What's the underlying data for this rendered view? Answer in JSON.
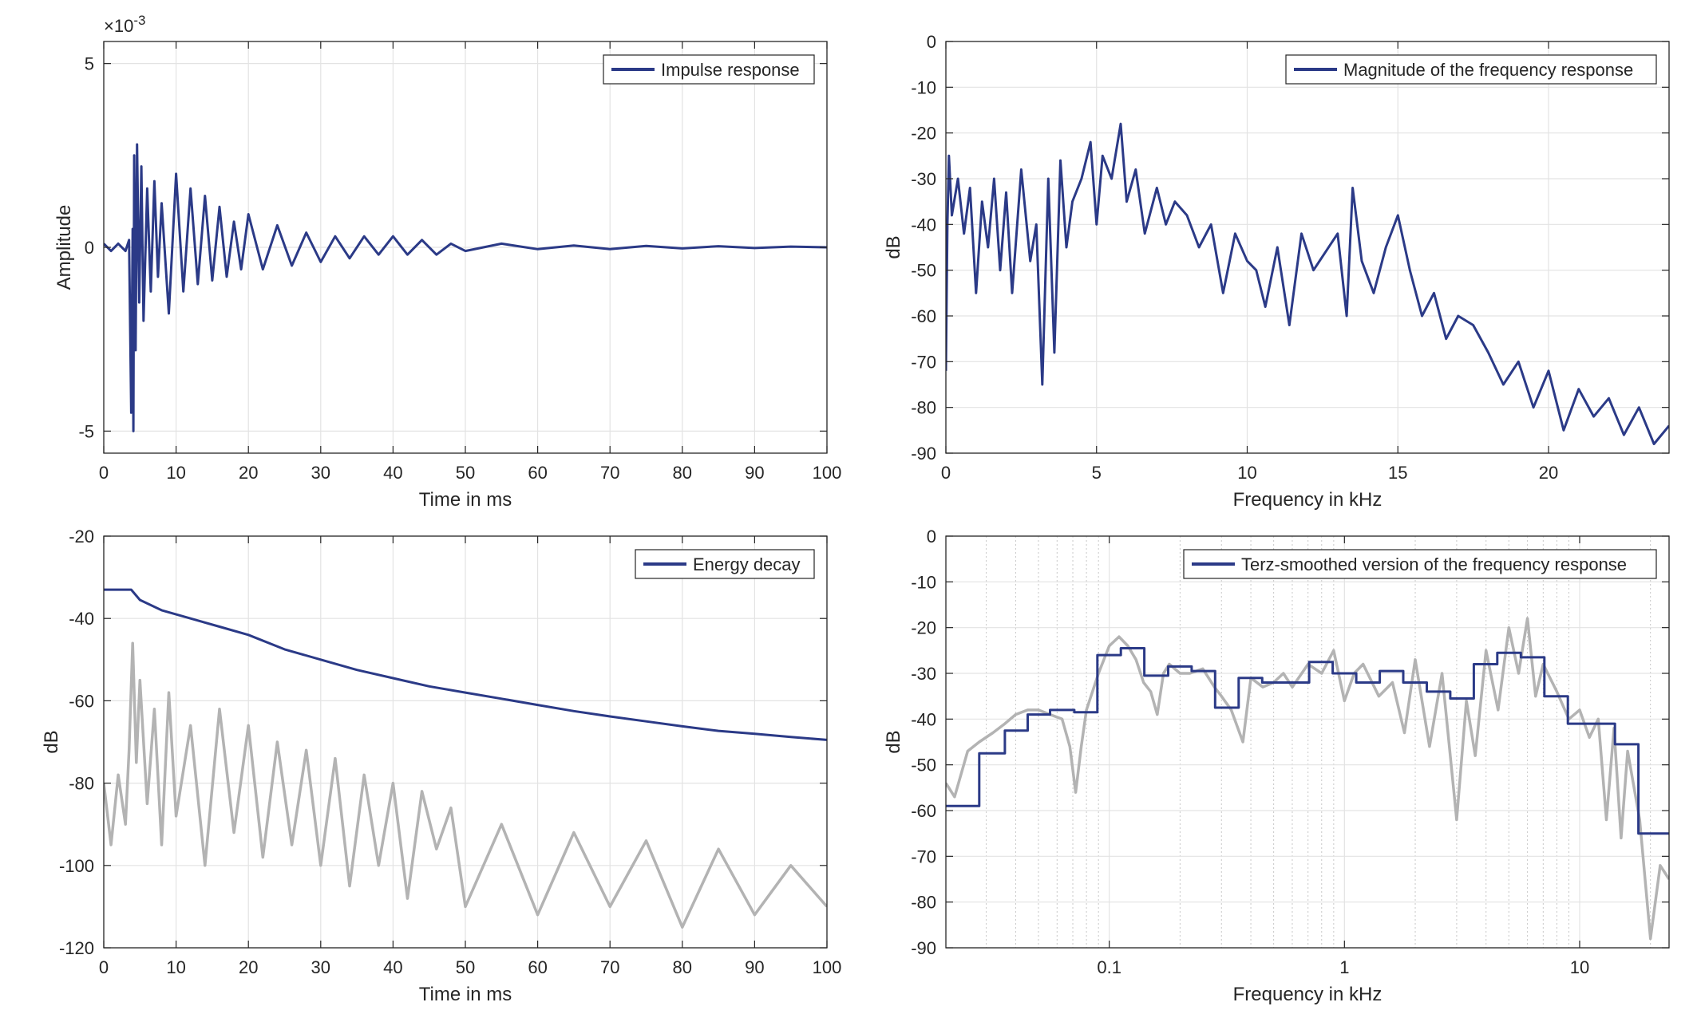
{
  "chart_data": [
    {
      "id": "impulse",
      "type": "line",
      "xlabel": "Time in ms",
      "ylabel": "Amplitude",
      "xlim": [
        0,
        100
      ],
      "ylim": [
        -0.0056,
        0.0056
      ],
      "xticks": [
        0,
        10,
        20,
        30,
        40,
        50,
        60,
        70,
        80,
        90,
        100
      ],
      "xtick_labels": [
        "0",
        "10",
        "20",
        "30",
        "40",
        "50",
        "60",
        "70",
        "80",
        "90",
        "100"
      ],
      "yticks": [
        -0.005,
        0,
        0.005
      ],
      "ytick_labels": [
        "-5",
        "0",
        "5"
      ],
      "exponent_label": "×10",
      "exponent_power": "-3",
      "grid": true,
      "legend_position": "top-right",
      "series": [
        {
          "name": "Impulse response",
          "color": "#2b3a87",
          "x": [
            0,
            1,
            2,
            3,
            3.5,
            3.8,
            4.0,
            4.1,
            4.2,
            4.4,
            4.6,
            4.9,
            5.2,
            5.5,
            6,
            6.5,
            7,
            7.5,
            8,
            9,
            10,
            11,
            12,
            13,
            14,
            15,
            16,
            17,
            18,
            19,
            20,
            22,
            24,
            26,
            28,
            30,
            32,
            34,
            36,
            38,
            40,
            42,
            44,
            46,
            48,
            50,
            55,
            60,
            65,
            70,
            75,
            80,
            85,
            90,
            95,
            100
          ],
          "y": [
            0.0001,
            -0.0001,
            0.0001,
            -0.0001,
            0.0002,
            -0.0045,
            0.0005,
            -0.005,
            0.0025,
            -0.0028,
            0.0028,
            -0.0015,
            0.0022,
            -0.002,
            0.0016,
            -0.0012,
            0.0018,
            -0.0008,
            0.0012,
            -0.0018,
            0.002,
            -0.0012,
            0.0016,
            -0.001,
            0.0014,
            -0.0009,
            0.0011,
            -0.0008,
            0.0007,
            -0.0006,
            0.0009,
            -0.0006,
            0.0006,
            -0.0005,
            0.0004,
            -0.0004,
            0.0003,
            -0.0003,
            0.0003,
            -0.0002,
            0.0003,
            -0.0002,
            0.0002,
            -0.0002,
            0.0001,
            -0.0001,
            0.0001,
            -5e-05,
            5e-05,
            -5e-05,
            4e-05,
            -3e-05,
            3e-05,
            -2e-05,
            2e-05,
            0
          ]
        }
      ]
    },
    {
      "id": "freq",
      "type": "line",
      "xlabel": "Frequency in kHz",
      "ylabel": "dB",
      "xlim": [
        0,
        24
      ],
      "ylim": [
        -90,
        0
      ],
      "xticks": [
        0,
        5,
        10,
        15,
        20
      ],
      "xtick_labels": [
        "0",
        "5",
        "10",
        "15",
        "20"
      ],
      "yticks": [
        0,
        -10,
        -20,
        -30,
        -40,
        -50,
        -60,
        -70,
        -80,
        -90
      ],
      "ytick_labels": [
        "0",
        "-10",
        "-20",
        "-30",
        "-40",
        "-50",
        "-60",
        "-70",
        "-80",
        "-90"
      ],
      "grid": true,
      "legend_position": "top-right",
      "series": [
        {
          "name": "Magnitude of the frequency response",
          "color": "#2b3a87",
          "x": [
            0,
            0.05,
            0.1,
            0.2,
            0.4,
            0.6,
            0.8,
            1.0,
            1.2,
            1.4,
            1.6,
            1.8,
            2.0,
            2.2,
            2.5,
            2.8,
            3.0,
            3.2,
            3.4,
            3.6,
            3.8,
            4.0,
            4.2,
            4.5,
            4.8,
            5.0,
            5.2,
            5.5,
            5.8,
            6.0,
            6.3,
            6.6,
            7.0,
            7.3,
            7.6,
            8.0,
            8.4,
            8.8,
            9.2,
            9.6,
            10.0,
            10.3,
            10.6,
            11.0,
            11.4,
            11.8,
            12.2,
            12.6,
            13.0,
            13.3,
            13.5,
            13.8,
            14.2,
            14.6,
            15.0,
            15.4,
            15.8,
            16.2,
            16.6,
            17.0,
            17.5,
            18.0,
            18.5,
            19.0,
            19.5,
            20.0,
            20.5,
            21.0,
            21.5,
            22.0,
            22.5,
            23.0,
            23.5,
            24.0
          ],
          "y": [
            -72,
            -40,
            -25,
            -38,
            -30,
            -42,
            -32,
            -55,
            -35,
            -45,
            -30,
            -50,
            -33,
            -55,
            -28,
            -48,
            -40,
            -75,
            -30,
            -68,
            -26,
            -45,
            -35,
            -30,
            -22,
            -40,
            -25,
            -30,
            -18,
            -35,
            -28,
            -42,
            -32,
            -40,
            -35,
            -38,
            -45,
            -40,
            -55,
            -42,
            -48,
            -50,
            -58,
            -45,
            -62,
            -42,
            -50,
            -46,
            -42,
            -60,
            -32,
            -48,
            -55,
            -45,
            -38,
            -50,
            -60,
            -55,
            -65,
            -60,
            -62,
            -68,
            -75,
            -70,
            -80,
            -72,
            -85,
            -76,
            -82,
            -78,
            -86,
            -80,
            -88,
            -84
          ]
        }
      ]
    },
    {
      "id": "decay",
      "type": "line",
      "xlabel": "Time in ms",
      "ylabel": "dB",
      "xlim": [
        0,
        100
      ],
      "ylim": [
        -120,
        -20
      ],
      "xticks": [
        0,
        10,
        20,
        30,
        40,
        50,
        60,
        70,
        80,
        90,
        100
      ],
      "xtick_labels": [
        "0",
        "10",
        "20",
        "30",
        "40",
        "50",
        "60",
        "70",
        "80",
        "90",
        "100"
      ],
      "yticks": [
        -20,
        -40,
        -60,
        -80,
        -100,
        -120
      ],
      "ytick_labels": [
        "-20",
        "-40",
        "-60",
        "-80",
        "-100",
        "-120"
      ],
      "grid": true,
      "legend_position": "top-right",
      "series": [
        {
          "color": "#b3b3b3",
          "x": [
            0,
            1,
            2,
            3,
            3.5,
            4,
            4.5,
            5,
            6,
            7,
            8,
            9,
            10,
            12,
            14,
            16,
            18,
            20,
            22,
            24,
            26,
            28,
            30,
            32,
            34,
            36,
            38,
            40,
            42,
            44,
            46,
            48,
            50,
            55,
            60,
            65,
            70,
            75,
            80,
            85,
            90,
            95,
            100
          ],
          "y": [
            -80,
            -95,
            -78,
            -90,
            -72,
            -46,
            -75,
            -55,
            -85,
            -62,
            -95,
            -58,
            -88,
            -66,
            -100,
            -62,
            -92,
            -66,
            -98,
            -70,
            -95,
            -72,
            -100,
            -74,
            -105,
            -78,
            -100,
            -80,
            -108,
            -82,
            -96,
            -86,
            -110,
            -90,
            -112,
            -92,
            -110,
            -94,
            -115,
            -96,
            -112,
            -100,
            -110
          ]
        },
        {
          "name": "Energy decay",
          "color": "#2b3a87",
          "x": [
            0,
            2,
            3.8,
            5,
            8,
            12,
            16,
            20,
            25,
            30,
            35,
            40,
            45,
            50,
            55,
            60,
            65,
            70,
            75,
            80,
            85,
            90,
            95,
            100
          ],
          "y": [
            -33,
            -33,
            -33,
            -35.5,
            -38,
            -40,
            -42,
            -44,
            -47.5,
            -50,
            -52.5,
            -54.5,
            -56.5,
            -58,
            -59.5,
            -61,
            -62.5,
            -63.8,
            -65,
            -66.2,
            -67.3,
            -68,
            -68.8,
            -69.5
          ]
        }
      ]
    },
    {
      "id": "terz",
      "type": "line",
      "log_x": true,
      "xlabel": "Frequency in kHz",
      "ylabel": "dB",
      "xlim": [
        0.0202,
        24
      ],
      "ylim": [
        -90,
        0
      ],
      "xticks": [
        0.1,
        1,
        10
      ],
      "xtick_labels": [
        "0.1",
        "1",
        "10"
      ],
      "yticks": [
        0,
        -10,
        -20,
        -30,
        -40,
        -50,
        -60,
        -70,
        -80,
        -90
      ],
      "ytick_labels": [
        "0",
        "-10",
        "-20",
        "-30",
        "-40",
        "-50",
        "-60",
        "-70",
        "-80",
        "-90"
      ],
      "grid": true,
      "legend_position": "top-right",
      "series": [
        {
          "color": "#b3b3b3",
          "x": [
            0.0202,
            0.022,
            0.025,
            0.028,
            0.032,
            0.036,
            0.04,
            0.045,
            0.05,
            0.056,
            0.063,
            0.068,
            0.072,
            0.076,
            0.08,
            0.09,
            0.1,
            0.11,
            0.12,
            0.13,
            0.14,
            0.15,
            0.16,
            0.17,
            0.18,
            0.2,
            0.22,
            0.25,
            0.28,
            0.3,
            0.33,
            0.37,
            0.4,
            0.45,
            0.5,
            0.55,
            0.6,
            0.7,
            0.8,
            0.9,
            1.0,
            1.1,
            1.2,
            1.4,
            1.6,
            1.8,
            2.0,
            2.3,
            2.6,
            3.0,
            3.3,
            3.6,
            4.0,
            4.5,
            5.0,
            5.5,
            6.0,
            6.5,
            7.0,
            8.0,
            9.0,
            10.0,
            11.0,
            12.0,
            13.0,
            14.0,
            15.0,
            16.0,
            18.0,
            20.0,
            22.0,
            24.0
          ],
          "y": [
            -54,
            -57,
            -47,
            -45,
            -43,
            -41,
            -39,
            -38,
            -38,
            -39,
            -40,
            -46,
            -56,
            -46,
            -38,
            -30,
            -24,
            -22,
            -24,
            -27,
            -32,
            -34,
            -39,
            -30,
            -28,
            -30,
            -30,
            -29,
            -33,
            -35,
            -38,
            -45,
            -31,
            -33,
            -32,
            -30,
            -33,
            -28,
            -30,
            -25,
            -36,
            -30,
            -28,
            -35,
            -32,
            -43,
            -27,
            -46,
            -30,
            -62,
            -36,
            -48,
            -25,
            -38,
            -20,
            -30,
            -18,
            -35,
            -28,
            -34,
            -40,
            -38,
            -44,
            -40,
            -62,
            -42,
            -66,
            -47,
            -62,
            -88,
            -72,
            -75
          ]
        },
        {
          "name": "Terz-smoothed version of the frequency response",
          "color": "#2b3a87",
          "steps": [
            {
              "x0": 0.0202,
              "x1": 0.028,
              "y": -59
            },
            {
              "x0": 0.028,
              "x1": 0.036,
              "y": -47.5
            },
            {
              "x0": 0.036,
              "x1": 0.045,
              "y": -42.5
            },
            {
              "x0": 0.045,
              "x1": 0.056,
              "y": -39
            },
            {
              "x0": 0.056,
              "x1": 0.071,
              "y": -38
            },
            {
              "x0": 0.071,
              "x1": 0.089,
              "y": -38.5
            },
            {
              "x0": 0.089,
              "x1": 0.112,
              "y": -26
            },
            {
              "x0": 0.112,
              "x1": 0.141,
              "y": -24.5
            },
            {
              "x0": 0.141,
              "x1": 0.178,
              "y": -30.5
            },
            {
              "x0": 0.178,
              "x1": 0.224,
              "y": -28.5
            },
            {
              "x0": 0.224,
              "x1": 0.282,
              "y": -29.5
            },
            {
              "x0": 0.282,
              "x1": 0.355,
              "y": -37.5
            },
            {
              "x0": 0.355,
              "x1": 0.447,
              "y": -31
            },
            {
              "x0": 0.447,
              "x1": 0.562,
              "y": -32
            },
            {
              "x0": 0.562,
              "x1": 0.708,
              "y": -32
            },
            {
              "x0": 0.708,
              "x1": 0.891,
              "y": -27.5
            },
            {
              "x0": 0.891,
              "x1": 1.122,
              "y": -30
            },
            {
              "x0": 1.122,
              "x1": 1.413,
              "y": -32
            },
            {
              "x0": 1.413,
              "x1": 1.778,
              "y": -29.5
            },
            {
              "x0": 1.778,
              "x1": 2.239,
              "y": -32
            },
            {
              "x0": 2.239,
              "x1": 2.818,
              "y": -34
            },
            {
              "x0": 2.818,
              "x1": 3.548,
              "y": -35.5
            },
            {
              "x0": 3.548,
              "x1": 4.467,
              "y": -28
            },
            {
              "x0": 4.467,
              "x1": 5.623,
              "y": -25.5
            },
            {
              "x0": 5.623,
              "x1": 7.079,
              "y": -26.5
            },
            {
              "x0": 7.079,
              "x1": 8.913,
              "y": -35
            },
            {
              "x0": 8.913,
              "x1": 11.22,
              "y": -41
            },
            {
              "x0": 11.22,
              "x1": 14.13,
              "y": -41
            },
            {
              "x0": 14.13,
              "x1": 17.78,
              "y": -45.5
            },
            {
              "x0": 17.78,
              "x1": 24,
              "y": -65
            }
          ]
        }
      ]
    }
  ]
}
